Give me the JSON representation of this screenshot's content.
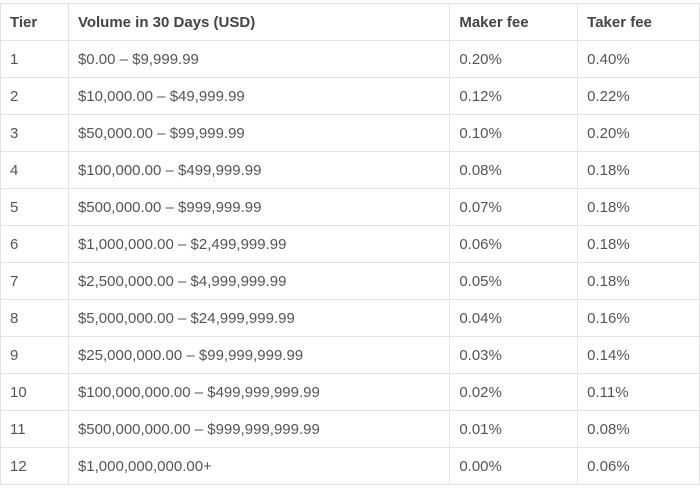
{
  "table": {
    "header": [
      "Tier",
      "Volume in 30 Days (USD)",
      "Maker fee",
      "Taker fee"
    ],
    "rows": [
      [
        "1",
        "$0.00 – $9,999.99",
        "0.20%",
        "0.40%"
      ],
      [
        "2",
        "$10,000.00 – $49,999.99",
        "0.12%",
        "0.22%"
      ],
      [
        "3",
        "$50,000.00 – $99,999.99",
        "0.10%",
        "0.20%"
      ],
      [
        "4",
        "$100,000.00 – $499,999.99",
        "0.08%",
        "0.18%"
      ],
      [
        "5",
        "$500,000.00 – $999,999.99",
        "0.07%",
        "0.18%"
      ],
      [
        "6",
        "$1,000,000.00 – $2,499,999.99",
        "0.06%",
        "0.18%"
      ],
      [
        "7",
        "$2,500,000.00 – $4,999,999.99",
        "0.05%",
        "0.18%"
      ],
      [
        "8",
        "$5,000,000.00 – $24,999,999.99",
        "0.04%",
        "0.16%"
      ],
      [
        "9",
        "$25,000,000.00 – $99,999,999.99",
        "0.03%",
        "0.14%"
      ],
      [
        "10",
        "$100,000,000.00 – $499,999,999.99",
        "0.02%",
        "0.11%"
      ],
      [
        "11",
        "$500,000,000.00 – $999,999,999.99",
        "0.01%",
        "0.08%"
      ],
      [
        "12",
        "$1,000,000,000.00+",
        "0.00%",
        "0.06%"
      ]
    ]
  }
}
